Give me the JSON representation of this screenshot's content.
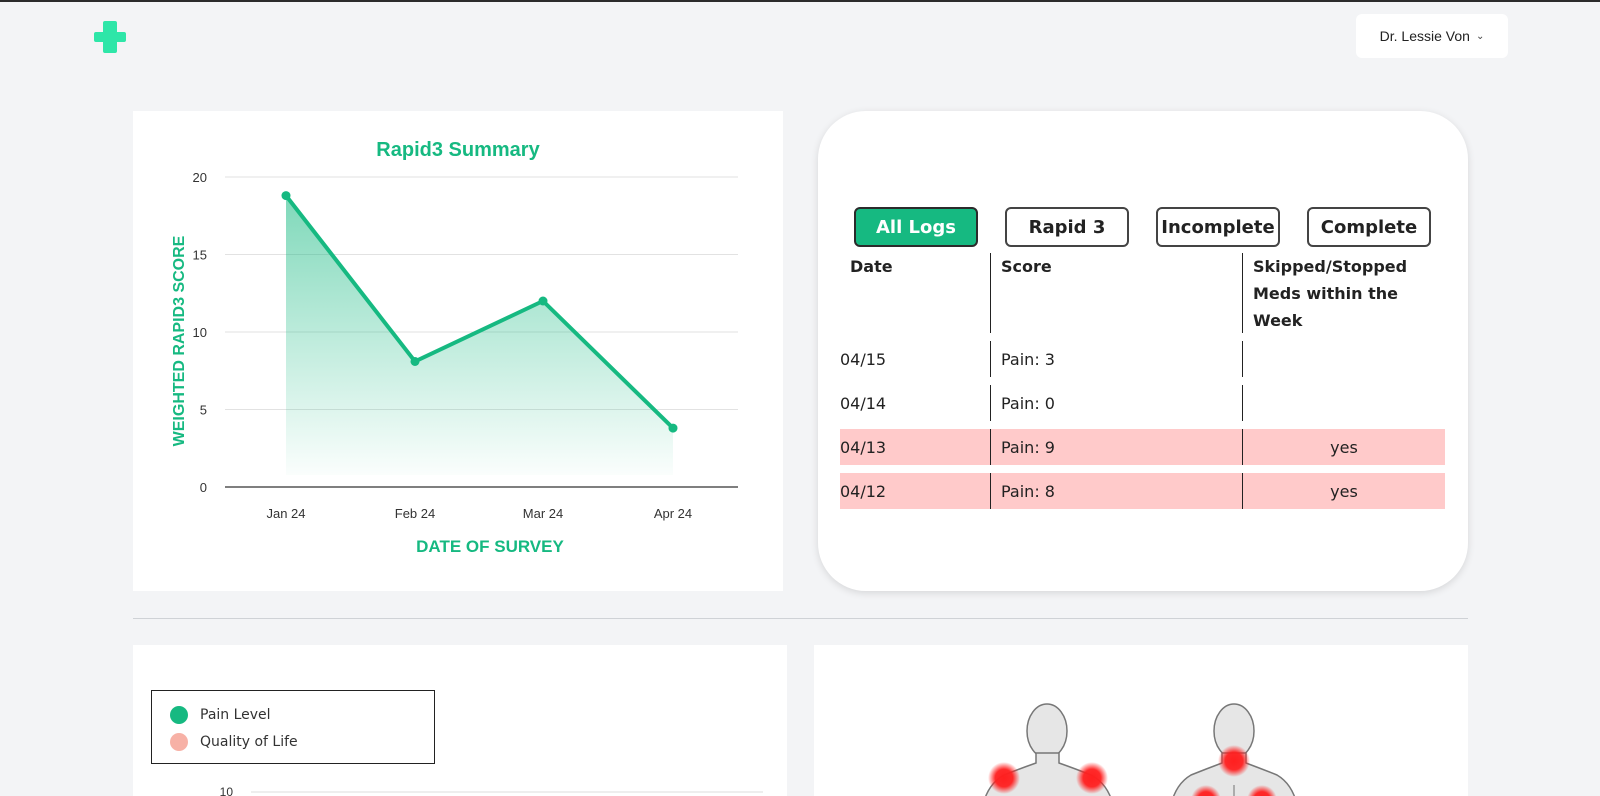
{
  "header": {
    "logo_icon": "medical-cross-icon",
    "logo_color": "#2ee6a8",
    "user_name": "Dr. Lessie Von",
    "user_menu_icon": "chevron-down-icon"
  },
  "colors": {
    "accent": "#16b981",
    "flag_row": "#ffcaca",
    "qol": "#f7b1a6",
    "hotspot": "#ff1f1f"
  },
  "chart_data": {
    "type": "area",
    "title": "Rapid3 Summary",
    "xlabel": "DATE OF SURVEY",
    "ylabel": "WEIGHTED RAPID3 SCORE",
    "categories": [
      "Jan 24",
      "Feb 24",
      "Mar 24",
      "Apr 24"
    ],
    "values": [
      18.8,
      8.1,
      12.0,
      3.8
    ],
    "ylim": [
      0,
      20
    ],
    "yticks": [
      "0",
      "5",
      "10",
      "15",
      "20"
    ],
    "grid": true
  },
  "logs": {
    "filters": [
      {
        "label": "All Logs",
        "active": true
      },
      {
        "label": "Rapid 3",
        "active": false
      },
      {
        "label": "Incomplete",
        "active": false
      },
      {
        "label": "Complete",
        "active": false
      }
    ],
    "columns": [
      "Date",
      "Score",
      "Skipped/Stopped Meds within the Week"
    ],
    "rows": [
      {
        "date": "04/15",
        "score": "Pain: 3",
        "skipped": "",
        "flag": false
      },
      {
        "date": "04/14",
        "score": "Pain: 0",
        "skipped": "",
        "flag": false
      },
      {
        "date": "04/13",
        "score": "Pain: 9",
        "skipped": "yes",
        "flag": true
      },
      {
        "date": "04/12",
        "score": "Pain: 8",
        "skipped": "yes",
        "flag": true
      }
    ]
  },
  "pain_chart": {
    "legend": [
      {
        "label": "Pain Level",
        "color": "#16b981"
      },
      {
        "label": "Quality of Life",
        "color": "#f7b1a6"
      }
    ],
    "first_ytick": "10"
  },
  "body_map": {
    "icon": "body-outline-icon"
  }
}
